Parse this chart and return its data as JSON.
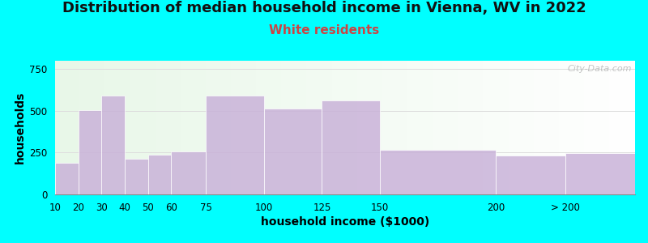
{
  "title": "Distribution of median household income in Vienna, WV in 2022",
  "subtitle": "White residents",
  "xlabel": "household income ($1000)",
  "ylabel": "households",
  "bar_color": "#c8b0d8",
  "bar_alpha": 0.82,
  "background_outer": "#00ffff",
  "background_plot_left": "#e8f8e8",
  "background_plot_right": "#f8f8f8",
  "bin_edges": [
    10,
    20,
    30,
    40,
    50,
    60,
    75,
    100,
    125,
    150,
    200,
    230,
    260
  ],
  "values": [
    190,
    505,
    590,
    215,
    240,
    255,
    590,
    515,
    560,
    265,
    235,
    245
  ],
  "xtick_positions": [
    10,
    20,
    30,
    40,
    50,
    60,
    75,
    100,
    125,
    150,
    200,
    230
  ],
  "xtick_labels": [
    "10",
    "20",
    "30",
    "40",
    "50",
    "60",
    "75",
    "100",
    "125",
    "150",
    "200",
    "> 200"
  ],
  "ylim": [
    0,
    800
  ],
  "yticks": [
    0,
    250,
    500,
    750
  ],
  "title_fontsize": 13,
  "subtitle_fontsize": 11,
  "subtitle_color": "#cc4444",
  "axis_label_fontsize": 10,
  "tick_fontsize": 8.5,
  "watermark": "City-Data.com"
}
